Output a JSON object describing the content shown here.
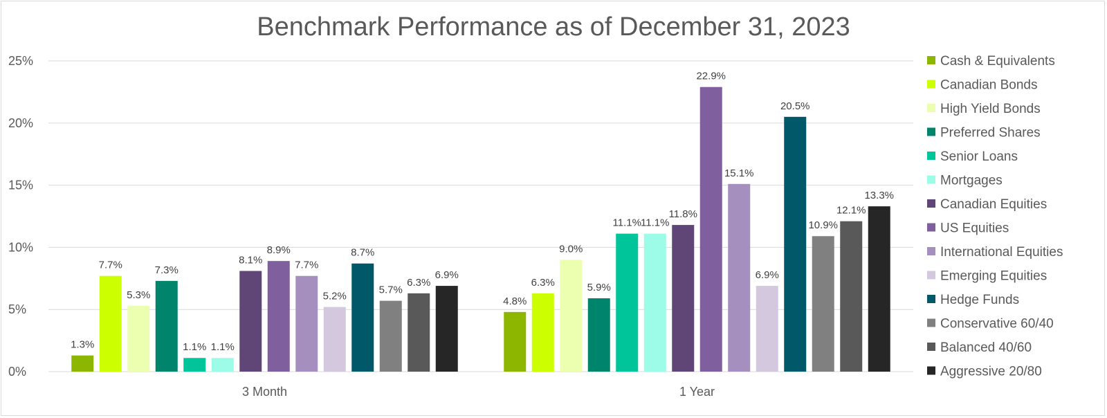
{
  "chart_data": {
    "type": "bar",
    "title": "Benchmark Performance as of December 31, 2023",
    "categories": [
      "3 Month",
      "1 Year"
    ],
    "ylim": [
      0,
      25
    ],
    "yticks": [
      "0%",
      "5%",
      "10%",
      "15%",
      "20%",
      "25%"
    ],
    "ytick_values": [
      0,
      5,
      10,
      15,
      20,
      25
    ],
    "grid": true,
    "legend_position": "right",
    "series": [
      {
        "name": "Cash & Equivalents",
        "color": "#8db600",
        "values": [
          1.3,
          4.8
        ],
        "labels": [
          "1.3%",
          "4.8%"
        ]
      },
      {
        "name": "Canadian Bonds",
        "color": "#ccff00",
        "values": [
          7.7,
          6.3
        ],
        "labels": [
          "7.7%",
          "6.3%"
        ]
      },
      {
        "name": "High Yield Bonds",
        "color": "#ecffb0",
        "values": [
          5.3,
          9.0
        ],
        "labels": [
          "5.3%",
          "9.0%"
        ]
      },
      {
        "name": "Preferred Shares",
        "color": "#00846c",
        "values": [
          7.3,
          5.9
        ],
        "labels": [
          "7.3%",
          "5.9%"
        ]
      },
      {
        "name": "Senior Loans",
        "color": "#00c49a",
        "values": [
          1.1,
          11.1
        ],
        "labels": [
          "1.1%",
          "11.1%"
        ]
      },
      {
        "name": "Mortgages",
        "color": "#9cfce8",
        "values": [
          1.1,
          11.1
        ],
        "labels": [
          "1.1%",
          "11.1%"
        ]
      },
      {
        "name": "Canadian Equities",
        "color": "#5f4677",
        "values": [
          8.1,
          11.8
        ],
        "labels": [
          "8.1%",
          "11.8%"
        ]
      },
      {
        "name": "US Equities",
        "color": "#7f5f9e",
        "values": [
          8.9,
          22.9
        ],
        "labels": [
          "8.9%",
          "22.9%"
        ]
      },
      {
        "name": "International Equities",
        "color": "#a48fbe",
        "values": [
          7.7,
          15.1
        ],
        "labels": [
          "7.7%",
          "15.1%"
        ]
      },
      {
        "name": "Emerging Equities",
        "color": "#d3c8de",
        "values": [
          5.2,
          6.9
        ],
        "labels": [
          "5.2%",
          "6.9%"
        ]
      },
      {
        "name": "Hedge Funds",
        "color": "#005868",
        "values": [
          8.7,
          20.5
        ],
        "labels": [
          "8.7%",
          "20.5%"
        ]
      },
      {
        "name": "Conservative 60/40",
        "color": "#808080",
        "values": [
          5.7,
          10.9
        ],
        "labels": [
          "5.7%",
          "10.9%"
        ]
      },
      {
        "name": "Balanced 40/60",
        "color": "#595959",
        "values": [
          6.3,
          12.1
        ],
        "labels": [
          "6.3%",
          "12.1%"
        ]
      },
      {
        "name": "Aggressive 20/80",
        "color": "#262626",
        "values": [
          6.9,
          13.3
        ],
        "labels": [
          "6.9%",
          "13.3%"
        ]
      }
    ]
  },
  "colors": {
    "grid": "#d9d9d9",
    "text": "#595959"
  }
}
